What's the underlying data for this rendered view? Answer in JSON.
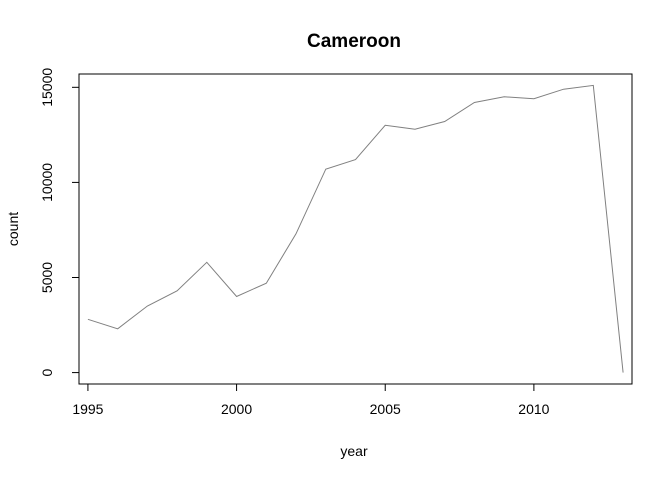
{
  "chart_data": {
    "type": "line",
    "title": "Cameroon",
    "xlabel": "year",
    "ylabel": "count",
    "xlim": [
      1994.7,
      2013.3
    ],
    "ylim": [
      -600,
      15700
    ],
    "grid": false,
    "x_ticks": [
      1995,
      2000,
      2005,
      2010
    ],
    "y_ticks": [
      0,
      5000,
      10000,
      15000
    ],
    "line_color": "#808080",
    "x": [
      1995,
      1996,
      1997,
      1998,
      1999,
      2000,
      2001,
      2002,
      2003,
      2004,
      2005,
      2006,
      2007,
      2008,
      2009,
      2010,
      2011,
      2012,
      2013
    ],
    "values": [
      2800,
      2300,
      3500,
      4300,
      5800,
      4000,
      4700,
      7300,
      10700,
      11200,
      13000,
      12800,
      13200,
      14200,
      14500,
      14400,
      14900,
      15100,
      0
    ]
  }
}
